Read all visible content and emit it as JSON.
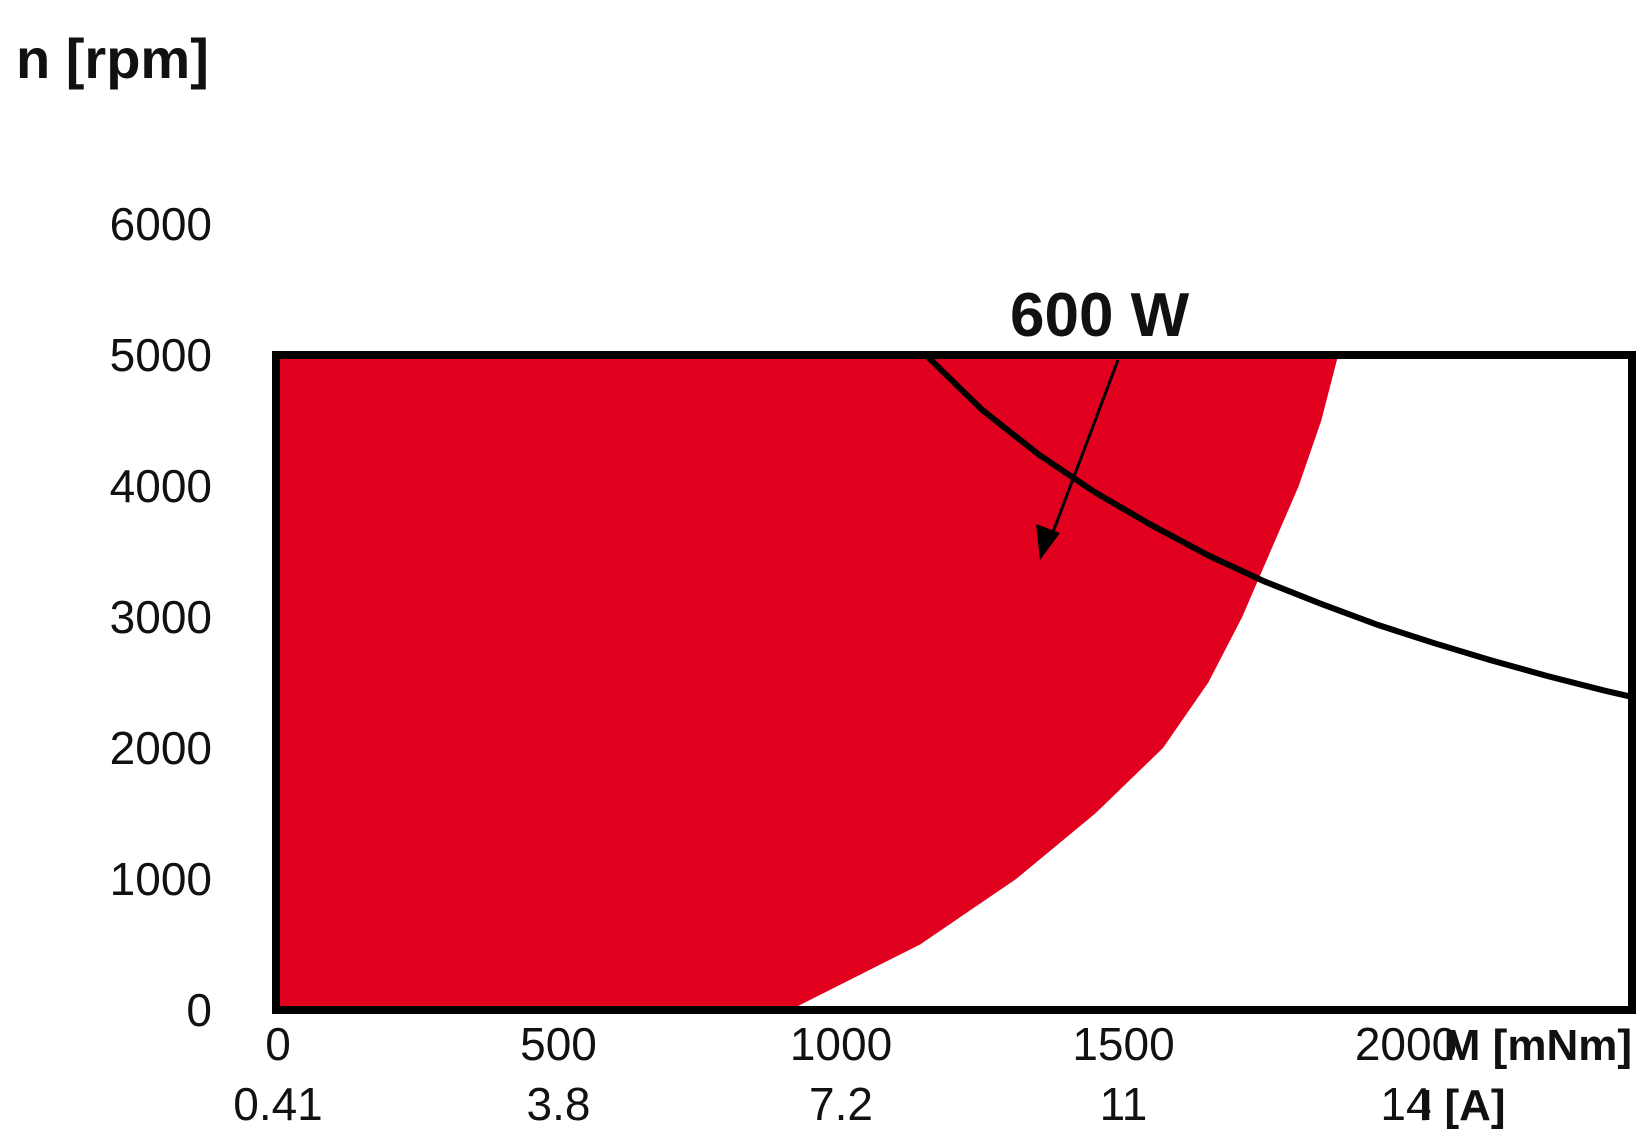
{
  "chart_data": {
    "type": "area",
    "title": "n [rpm]",
    "ylabel": "n [rpm]",
    "xlabel": "M [mNm]",
    "x2label": "I [A]",
    "ylim": [
      0,
      6000
    ],
    "xlim": [
      0,
      2400
    ],
    "y_ticks": [
      0,
      1000,
      2000,
      3000,
      4000,
      5000,
      6000
    ],
    "x_ticks": [
      0,
      500,
      1000,
      1500,
      2000
    ],
    "x2_ticks": [
      "0.41",
      "3.8",
      "7.2",
      "11",
      "14"
    ],
    "grid": false,
    "operating_region": {
      "name": "",
      "color": "#e2001f",
      "n_max": 5000,
      "boundary": [
        {
          "M": 910,
          "n": 0
        },
        {
          "M": 1140,
          "n": 500
        },
        {
          "M": 1310,
          "n": 1000
        },
        {
          "M": 1450,
          "n": 1500
        },
        {
          "M": 1570,
          "n": 2000
        },
        {
          "M": 1650,
          "n": 2500
        },
        {
          "M": 1710,
          "n": 3000
        },
        {
          "M": 1760,
          "n": 3500
        },
        {
          "M": 1810,
          "n": 4000
        },
        {
          "M": 1850,
          "n": 4500
        },
        {
          "M": 1880,
          "n": 5000
        }
      ]
    },
    "power_curve": {
      "name": "600 W",
      "color": "#000000",
      "points": [
        {
          "M": 1150,
          "n": 5000
        },
        {
          "M": 1250,
          "n": 4580
        },
        {
          "M": 1350,
          "n": 4240
        },
        {
          "M": 1450,
          "n": 3950
        },
        {
          "M": 1550,
          "n": 3700
        },
        {
          "M": 1650,
          "n": 3470
        },
        {
          "M": 1750,
          "n": 3270
        },
        {
          "M": 1850,
          "n": 3100
        },
        {
          "M": 1950,
          "n": 2940
        },
        {
          "M": 2050,
          "n": 2800
        },
        {
          "M": 2150,
          "n": 2670
        },
        {
          "M": 2250,
          "n": 2550
        },
        {
          "M": 2350,
          "n": 2440
        },
        {
          "M": 2400,
          "n": 2390
        }
      ]
    },
    "annotations": [
      {
        "text": "600 W"
      }
    ]
  }
}
